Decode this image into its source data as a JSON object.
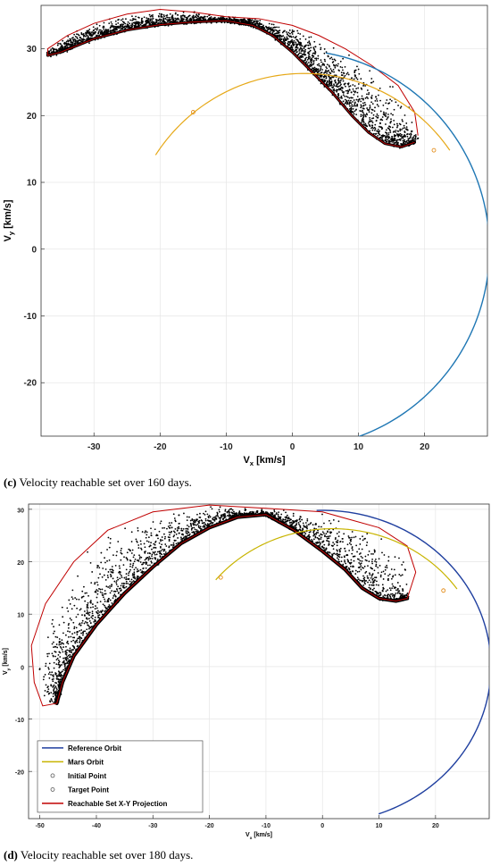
{
  "chart_data": [
    {
      "type": "scatter",
      "xlabel": "V_x [km/s]",
      "ylabel": "V_y [km/s]",
      "xlim": [
        -38,
        29.5
      ],
      "ylim": [
        -28,
        36.5
      ],
      "xticks": [
        -30,
        -20,
        -10,
        0,
        10,
        20
      ],
      "yticks": [
        -20,
        -10,
        0,
        10,
        20,
        30
      ],
      "grid": true,
      "legend": "none",
      "colors": {
        "reference": "#1f77b4",
        "mars": "#e6a817",
        "boundary": "#c00000",
        "cloud": "#000000"
      },
      "series": [
        {
          "kind": "reference_orbit",
          "center": [
            0,
            0
          ],
          "radius": 29.8,
          "arc_deg": [
            -70.5,
            80.2
          ]
        },
        {
          "kind": "mars_orbit",
          "center": [
            1.8,
            -0.5
          ],
          "radius": 26.8,
          "arc_deg": [
            34.8,
            147
          ],
          "markers": [
            [
              -15,
              20.5
            ],
            [
              21.4,
              14.8
            ]
          ]
        },
        {
          "kind": "reachable_set",
          "outer": [
            [
              19.0,
              17.0
            ],
            [
              18.5,
              20.5
            ],
            [
              16.0,
              24.5
            ],
            [
              12.0,
              27.5
            ],
            [
              8.0,
              30.0
            ],
            [
              4.0,
              32.0
            ],
            [
              0.0,
              33.5
            ],
            [
              -5.0,
              34.5
            ],
            [
              -10.0,
              34.8
            ],
            [
              -15.0,
              35.5
            ],
            [
              -20.0,
              35.9
            ],
            [
              -25.0,
              35.2
            ],
            [
              -30.0,
              33.8
            ],
            [
              -34.0,
              32.0
            ],
            [
              -37.0,
              30.0
            ]
          ],
          "inner": [
            [
              -37.0,
              29.0
            ],
            [
              -35.0,
              29.5
            ],
            [
              -30.0,
              31.5
            ],
            [
              -25.0,
              32.8
            ],
            [
              -20.0,
              33.6
            ],
            [
              -15.0,
              34.0
            ],
            [
              -10.0,
              34.2
            ],
            [
              -6.0,
              33.5
            ],
            [
              -3.0,
              32.0
            ],
            [
              0.0,
              29.5
            ],
            [
              3.0,
              26.5
            ],
            [
              6.0,
              23.5
            ],
            [
              9.0,
              20.0
            ],
            [
              11.5,
              17.5
            ],
            [
              14.0,
              15.8
            ],
            [
              16.5,
              15.3
            ],
            [
              18.5,
              16.0
            ]
          ]
        }
      ],
      "caption_label": "(c)",
      "caption_text": "Velocity reachable set over 160 days."
    },
    {
      "type": "scatter",
      "xlabel": "V_x [km/s]",
      "ylabel": "V_y [km/s]",
      "xlim": [
        -52,
        29.5
      ],
      "ylim": [
        -29,
        31
      ],
      "xticks": [
        -50,
        -40,
        -30,
        -20,
        -10,
        0,
        10,
        20
      ],
      "yticks": [
        -20,
        -10,
        0,
        10,
        20,
        30
      ],
      "grid": true,
      "legend": "bottom-left",
      "legend_entries": [
        "Reference Orbit",
        "Mars Orbit",
        "Initial Point",
        "Target Point",
        "Reachable Set X-Y Projection"
      ],
      "colors": {
        "reference": "#1f3f9f",
        "mars": "#c8b400",
        "boundary": "#c00000",
        "cloud": "#000000",
        "initial": "#333333",
        "target": "#333333"
      },
      "series": [
        {
          "kind": "reference_orbit",
          "center": [
            0,
            0
          ],
          "radius": 29.8,
          "arc_deg": [
            -70.5,
            92
          ]
        },
        {
          "kind": "mars_orbit",
          "center": [
            1.8,
            -0.5
          ],
          "radius": 26.8,
          "arc_deg": [
            34.8,
            140.5
          ],
          "markers": [
            [
              -18,
              17
            ],
            [
              21.4,
              14.5
            ]
          ]
        },
        {
          "kind": "reachable_set",
          "outer": [
            [
              15.0,
              13.0
            ],
            [
              16.5,
              18.0
            ],
            [
              15.0,
              23.0
            ],
            [
              10.0,
              26.5
            ],
            [
              0.0,
              29.5
            ],
            [
              -10.0,
              30.2
            ],
            [
              -20.0,
              30.8
            ],
            [
              -30.0,
              29.5
            ],
            [
              -38.0,
              26.0
            ],
            [
              -44.0,
              20.0
            ],
            [
              -49.0,
              12.0
            ],
            [
              -51.5,
              4.0
            ],
            [
              -51.0,
              -3.0
            ],
            [
              -49.5,
              -7.5
            ],
            [
              -47.0,
              -7.0
            ]
          ],
          "inner": [
            [
              -47.0,
              -7.0
            ],
            [
              -46.0,
              -3.0
            ],
            [
              -44.0,
              2.0
            ],
            [
              -40.0,
              8.0
            ],
            [
              -35.0,
              14.0
            ],
            [
              -30.0,
              19.0
            ],
            [
              -25.0,
              23.5
            ],
            [
              -20.0,
              26.5
            ],
            [
              -15.0,
              28.5
            ],
            [
              -10.0,
              29.0
            ],
            [
              -5.0,
              26.0
            ],
            [
              0.0,
              22.0
            ],
            [
              4.0,
              18.5
            ],
            [
              7.0,
              15.0
            ],
            [
              10.0,
              13.0
            ],
            [
              13.0,
              12.5
            ],
            [
              15.0,
              13.0
            ]
          ]
        }
      ],
      "caption_label": "(d)",
      "caption_text": "Velocity reachable set over 180 days."
    }
  ]
}
